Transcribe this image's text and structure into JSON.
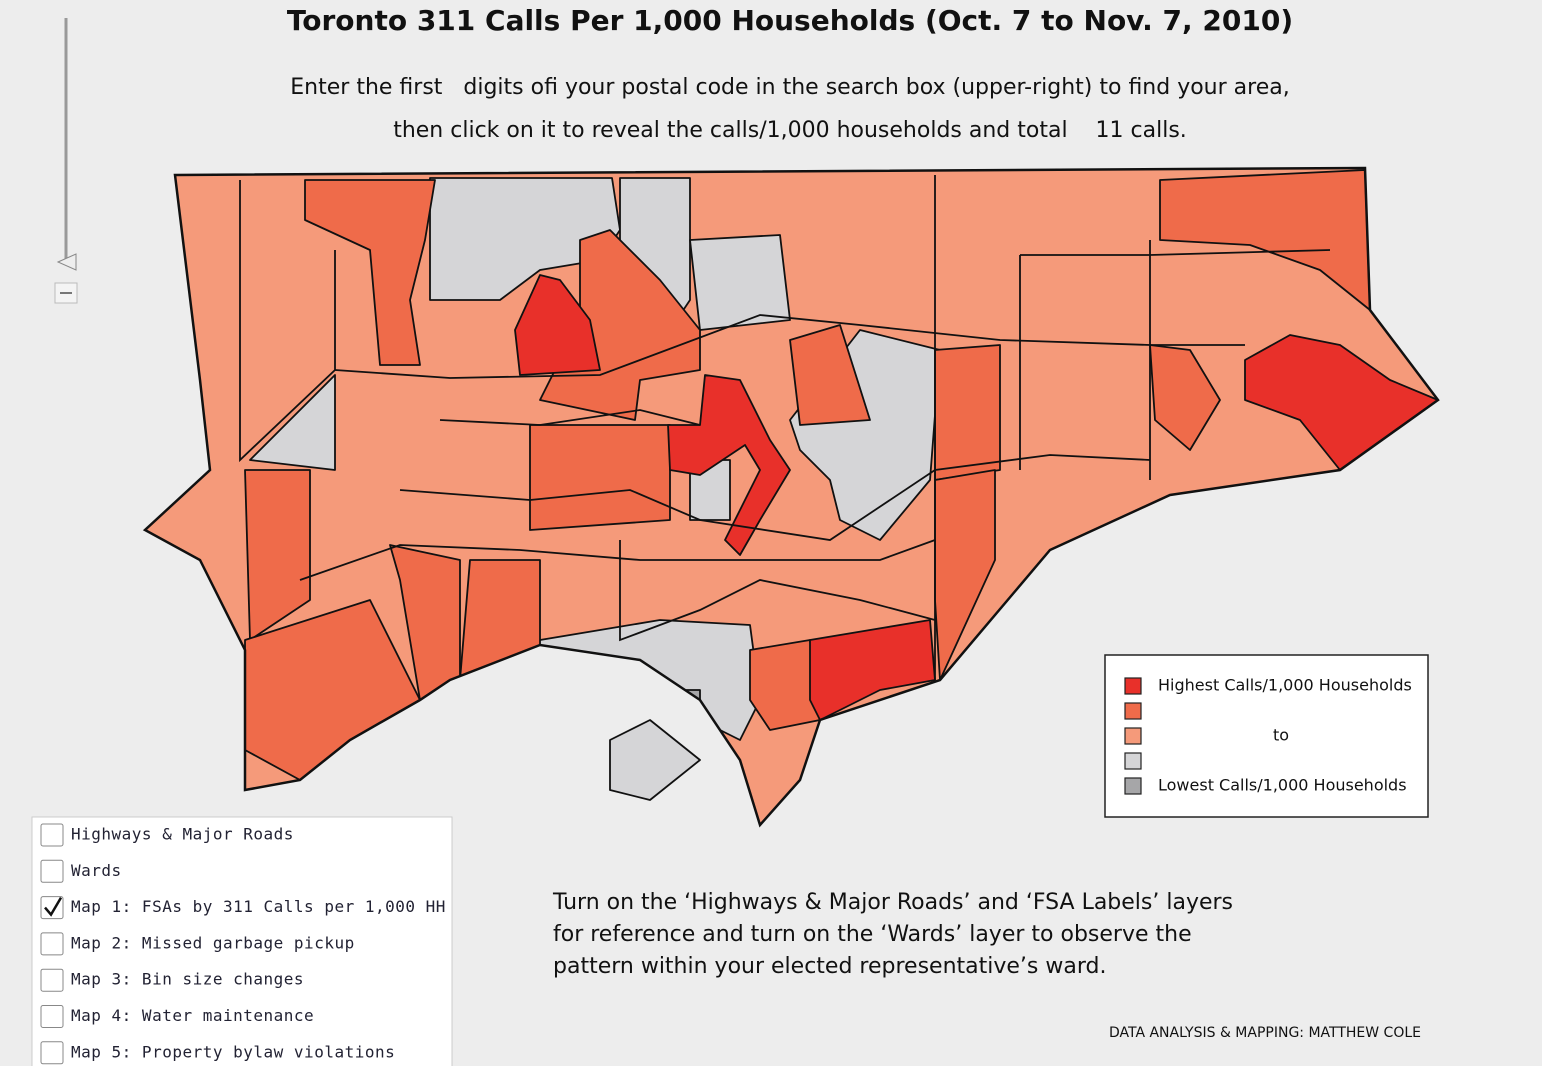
{
  "header": {
    "title": "Toronto 311 Calls Per 1,000 Households (Oct. 7 to Nov. 7, 2010)",
    "instructions": [
      "Enter the first   digits ofi your postal code in the search box (upper-right) to find your area,",
      "then click on it to reveal the calls/1,000 households and total    11 calls."
    ]
  },
  "legend": {
    "colors": [
      "#e8302a",
      "#ef6b4a",
      "#f59a7a",
      "#d5d5d7",
      "#a6a6a8"
    ],
    "high": "Highest Calls/1,000 Households",
    "mid": "to",
    "low": "Lowest Calls/1,000 Households"
  },
  "layers": [
    {
      "label": "Highways & Major Roads",
      "checked": false
    },
    {
      "label": "Wards",
      "checked": false
    },
    {
      "label": "Map 1: FSAs by 311 Calls per 1,000 HH",
      "checked": true
    },
    {
      "label": "Map 2: Missed garbage pickup",
      "checked": false
    },
    {
      "label": "Map 3: Bin size changes",
      "checked": false
    },
    {
      "label": "Map 4: Water maintenance",
      "checked": false
    },
    {
      "label": "Map 5: Property bylaw violations",
      "checked": false
    }
  ],
  "note": [
    "Turn on the ‘Highways & Major Roads’ and ‘FSA Labels’ layers",
    "for reference and turn on the ‘Wards’ layer to observe the",
    "pattern within your elected representative’s ward."
  ],
  "credit": "DATA ANALYSIS & MAPPING: MATTHEW COLE"
}
